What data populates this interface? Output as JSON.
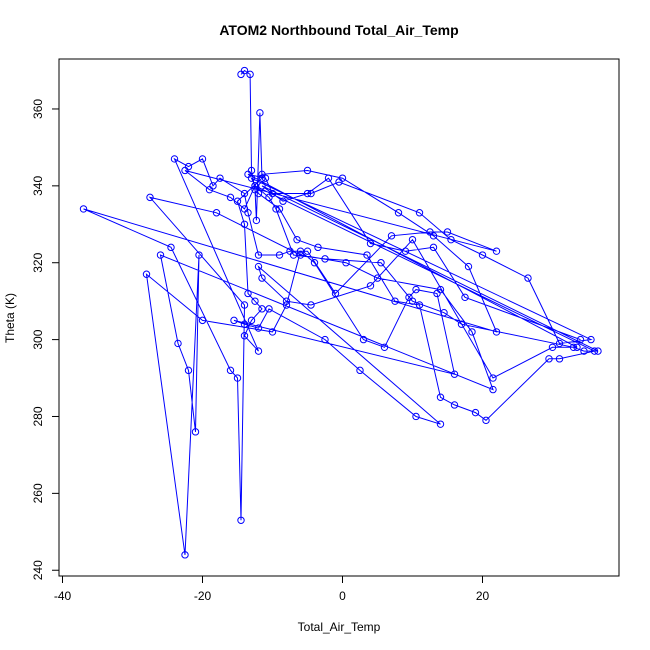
{
  "chart_data": {
    "type": "line",
    "title": "ATOM2 Northbound Total_Air_Temp",
    "xlabel": "Total_Air_Temp",
    "ylabel": "Theta (K)",
    "xlim": [
      -40.5,
      39.5
    ],
    "ylim": [
      238.5,
      373
    ],
    "xticks": [
      -40,
      -20,
      0,
      20
    ],
    "yticks": [
      240,
      260,
      280,
      300,
      320,
      340,
      360
    ],
    "grid": false,
    "marker": "open-circle",
    "series": [
      {
        "color": "#0000ff",
        "x": [
          -14.5,
          -14.0,
          -13.2,
          -13.0,
          -12.5,
          -12.3,
          -11.8,
          -11.5,
          -15.0,
          -14.0,
          -13.5,
          -12.5,
          -11.5,
          -13.0,
          -14.0,
          -12.0,
          -24.0,
          -22.0,
          -20.0,
          -18.5,
          -17.5,
          -14.0,
          -13.5,
          -12.0,
          -9.0,
          -7.5,
          -5.0,
          -1.0,
          7.0,
          12.5,
          15.0,
          22.0,
          -22.5,
          -19.0,
          -16.0,
          -14.0,
          -12.5,
          -11.5,
          -5.0,
          0.0,
          8.0,
          13.0,
          18.0,
          22.0,
          -37.0,
          -24.5,
          -16.0,
          -15.0,
          -14.5,
          -14.0,
          -27.5,
          -18.0,
          -6.0,
          0.5,
          5.0,
          14.0,
          18.5,
          21.5,
          -26.0,
          -23.5,
          -22.0,
          -21.0,
          -20.5,
          -22.5,
          -28.0,
          -20.0,
          -10.0,
          -8.0,
          -6.0,
          -4.0,
          3.0,
          6.0,
          9.5,
          10.5,
          13.5,
          16.0,
          -15.5,
          -14.0,
          -12.0,
          -10.5,
          -2.5,
          2.5,
          10.5,
          14.0,
          -12.0,
          -11.5,
          -8.0,
          -4.5,
          4.0,
          10.0,
          21.5,
          30.0,
          33.5,
          -13.5,
          -11.0,
          -10.0,
          -4.5,
          -0.5,
          11.0,
          15.5,
          20.0,
          26.5,
          31.0,
          35.5,
          -13.0,
          -12.0,
          -9.0,
          -6.5,
          -3.5,
          3.5,
          7.5,
          11.0,
          14.0,
          16.0,
          19.0,
          20.5,
          29.5,
          31.0,
          36.0,
          -12.5,
          -10.5,
          -9.5,
          -7.0,
          -2.5,
          5.5,
          10.0,
          14.5,
          17.0,
          33.0,
          34.5,
          36.5,
          -11.5,
          -8.5,
          -5.0,
          -2.0,
          4.0,
          9.0,
          13.0,
          17.5,
          34.0
        ],
        "y": [
          369,
          370,
          369,
          344,
          339,
          331,
          359,
          342,
          336,
          330,
          312,
          310,
          308,
          305,
          301,
          297,
          347,
          345,
          347,
          340,
          342,
          338,
          333,
          322,
          322,
          323,
          323,
          312,
          327,
          328,
          328,
          323,
          344,
          339,
          337,
          334,
          340,
          343,
          344,
          342,
          333,
          327,
          319,
          302,
          334,
          324,
          292,
          290,
          253,
          309,
          337,
          333,
          322,
          320,
          316,
          313,
          302,
          287,
          322,
          299,
          292,
          276,
          322,
          244,
          317,
          305,
          302,
          309,
          323,
          320,
          300,
          298,
          311,
          313,
          312,
          291,
          305,
          304,
          303,
          308,
          300,
          292,
          280,
          278,
          319,
          316,
          310,
          309,
          314,
          326,
          290,
          298,
          298,
          343,
          342,
          338,
          338,
          341,
          333,
          326,
          322,
          316,
          299,
          300,
          342,
          338,
          334,
          326,
          324,
          322,
          310,
          309,
          285,
          283,
          281,
          279,
          295,
          295,
          297,
          340,
          337,
          334,
          322,
          321,
          320,
          310,
          307,
          304,
          298,
          297,
          297,
          340,
          336,
          338,
          342,
          325,
          323,
          324,
          311,
          300
        ]
      }
    ]
  }
}
